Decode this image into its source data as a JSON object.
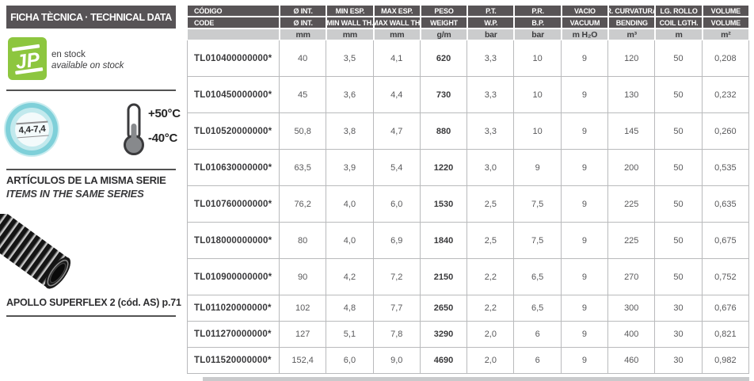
{
  "sidebar": {
    "title": "FICHA TÈCNICA · TECHNICAL DATA",
    "stock": {
      "logo_text": "JP",
      "line1": "en stock",
      "line2": "available on stock"
    },
    "range_badge": {
      "value": "4,4-7,4"
    },
    "temperature": {
      "max": "+50°C",
      "min": "-40°C"
    },
    "series": {
      "line1": "ARTÍCULOS DE LA MISMA SERIE",
      "line2": "ITEMS IN THE SAME SERIES"
    },
    "product_caption": "APOLLO SUPERFLEX 2  (cód. AS) p.71"
  },
  "table": {
    "columns": [
      {
        "top": "CÓDIGO",
        "bottom": "CODE",
        "unit": ""
      },
      {
        "top": "Ø INT.",
        "bottom": "Ø INT.",
        "unit": "mm"
      },
      {
        "top": "MIN ESP.",
        "bottom": "MIN WALL TH.",
        "unit": "mm"
      },
      {
        "top": "MAX ESP.",
        "bottom": "MAX WALL TH.",
        "unit": "mm"
      },
      {
        "top": "PESO",
        "bottom": "WEIGHT",
        "unit": "g/m"
      },
      {
        "top": "P.T.",
        "bottom": "W.P.",
        "unit": "bar"
      },
      {
        "top": "P.R.",
        "bottom": "B.P.",
        "unit": "bar"
      },
      {
        "top": "VACIO",
        "bottom": "VACUUM",
        "unit": "m H₂O"
      },
      {
        "top": "R. CURVATURA",
        "bottom": "BENDING",
        "unit": "m³"
      },
      {
        "top": "LG. ROLLO",
        "bottom": "COIL LGTH.",
        "unit": "m"
      },
      {
        "top": "VOLUME",
        "bottom": "VOLUME",
        "unit": "m²"
      }
    ],
    "rows": [
      [
        "TL010400000000*",
        "40",
        "3,5",
        "4,1",
        "620",
        "3,3",
        "10",
        "9",
        "120",
        "50",
        "0,208"
      ],
      [
        "TL010450000000*",
        "45",
        "3,6",
        "4,4",
        "730",
        "3,3",
        "10",
        "9",
        "130",
        "50",
        "0,232"
      ],
      [
        "TL010520000000*",
        "50,8",
        "3,8",
        "4,7",
        "880",
        "3,3",
        "10",
        "9",
        "145",
        "50",
        "0,260"
      ],
      [
        "TL010630000000*",
        "63,5",
        "3,9",
        "5,4",
        "1220",
        "3,0",
        "9",
        "9",
        "200",
        "50",
        "0,535"
      ],
      [
        "TL010760000000*",
        "76,2",
        "4,0",
        "6,0",
        "1530",
        "2,5",
        "7,5",
        "9",
        "225",
        "50",
        "0,635"
      ],
      [
        "TL018000000000*",
        "80",
        "4,0",
        "6,9",
        "1840",
        "2,5",
        "7,5",
        "9",
        "225",
        "50",
        "0,675"
      ],
      [
        "TL010900000000*",
        "90",
        "4,2",
        "7,2",
        "2150",
        "2,2",
        "6,5",
        "9",
        "270",
        "50",
        "0,752"
      ],
      [
        "TL011020000000*",
        "102",
        "4,8",
        "7,7",
        "2650",
        "2,2",
        "6,5",
        "9",
        "300",
        "30",
        "0,676"
      ],
      [
        "TL011270000000*",
        "127",
        "5,1",
        "7,8",
        "3290",
        "2,0",
        "6",
        "9",
        "400",
        "30",
        "0,821"
      ],
      [
        "TL011520000000*",
        "152,4",
        "6,0",
        "9,0",
        "4690",
        "2,0",
        "6",
        "9",
        "460",
        "30",
        "0,982"
      ]
    ]
  },
  "colors": {
    "accent_green": "#8dc63f",
    "badge_teal": "#7fd0d9",
    "header_gray": "#585456",
    "unit_row_gray": "#cbcccd"
  }
}
